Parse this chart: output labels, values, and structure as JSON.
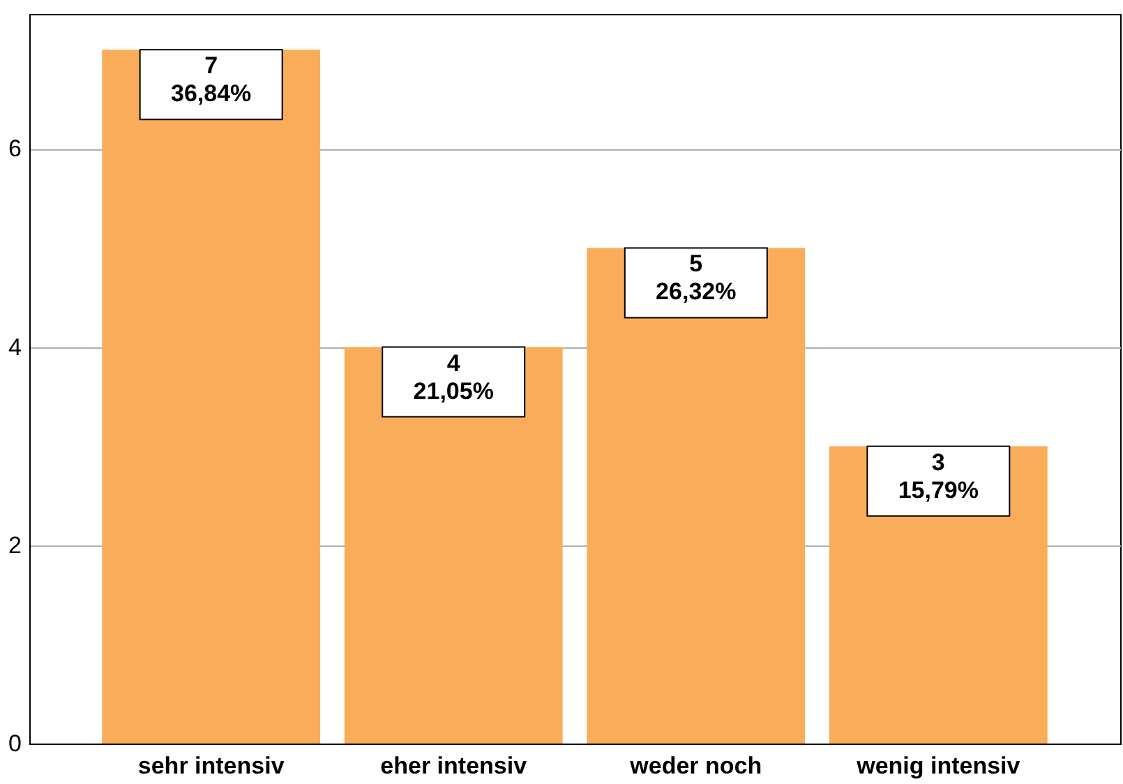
{
  "chart_data": {
    "type": "bar",
    "categories": [
      "sehr intensiv",
      "eher intensiv",
      "weder noch",
      "wenig intensiv"
    ],
    "values": [
      7,
      4,
      5,
      3
    ],
    "color": "#f9ad5b",
    "ylim": [
      0,
      7.36
    ],
    "yticks": [
      0,
      2,
      4,
      6
    ],
    "grid": "y",
    "value_labels": [
      "7\n36,84%",
      "4\n21,05%",
      "5\n26,32%",
      "3\n15,79%"
    ]
  }
}
